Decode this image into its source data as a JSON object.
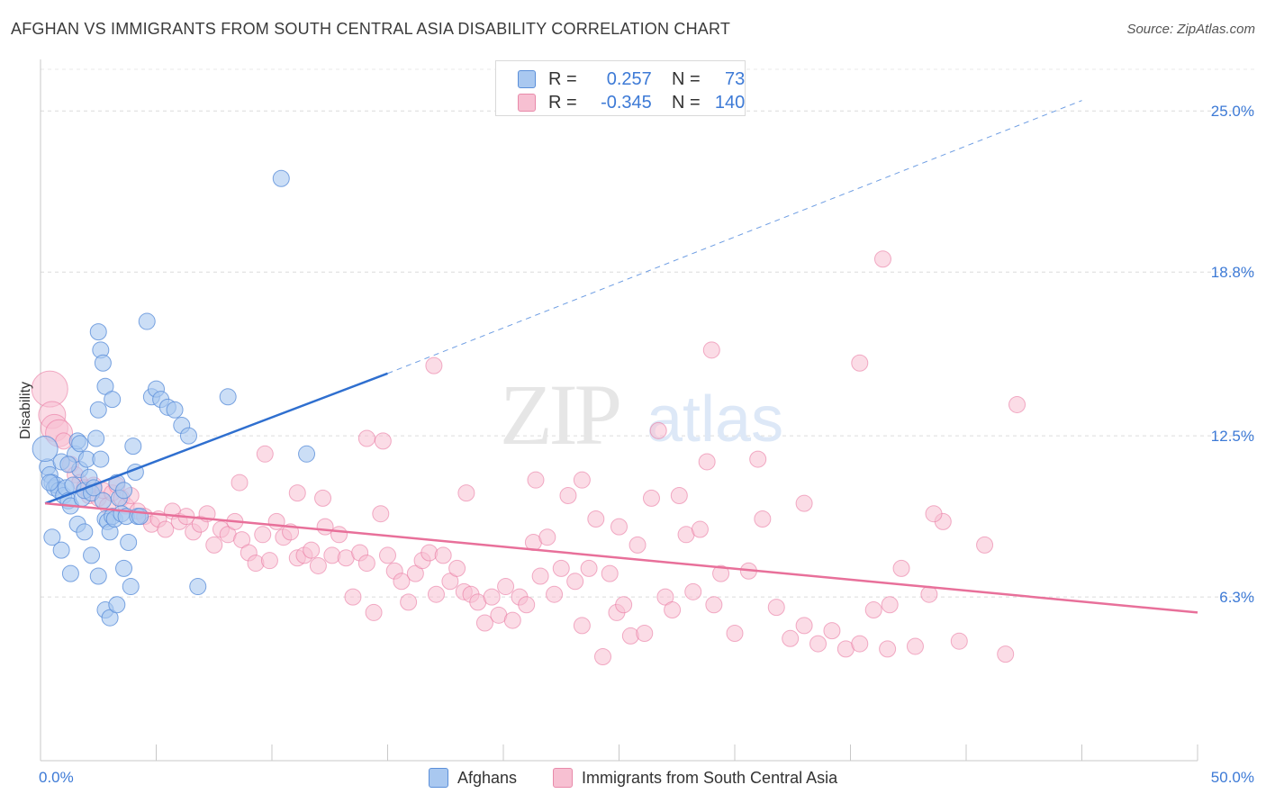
{
  "title": "AFGHAN VS IMMIGRANTS FROM SOUTH CENTRAL ASIA DISABILITY CORRELATION CHART",
  "source": "Source: ZipAtlas.com",
  "watermark": {
    "zip": "ZIP",
    "atlas": "atlas"
  },
  "legend": {
    "rows": [
      {
        "r_label": "R =",
        "r_value": "0.257",
        "n_label": "N =",
        "n_value": "73",
        "color": "#a9c8f0",
        "border": "#5b8fd9"
      },
      {
        "r_label": "R =",
        "r_value": "-0.345",
        "n_label": "N =",
        "n_value": "140",
        "color": "#f7c0d2",
        "border": "#e88aaa"
      }
    ],
    "bottom": [
      {
        "label": "Afghans",
        "color": "#a9c8f0",
        "border": "#5b8fd9"
      },
      {
        "label": "Immigrants from South Central Asia",
        "color": "#f7c0d2",
        "border": "#e88aaa"
      }
    ]
  },
  "chart_data": {
    "type": "scatter",
    "title": "AFGHAN VS IMMIGRANTS FROM SOUTH CENTRAL ASIA DISABILITY CORRELATION CHART",
    "xlabel": "",
    "ylabel": "Disability",
    "xlim": [
      0,
      50
    ],
    "ylim": [
      0,
      26.6
    ],
    "x_tick_labels": [
      "0.0%",
      "50.0%"
    ],
    "y_ticks": [
      6.3,
      12.5,
      18.8,
      25.0
    ],
    "y_tick_labels": [
      "6.3%",
      "12.5%",
      "18.8%",
      "25.0%"
    ],
    "grid": true,
    "series": [
      {
        "name": "Afghans",
        "color": "#5b8fd9",
        "fill": "#a9c8f0",
        "trend": {
          "x0": 0.2,
          "y0": 9.9,
          "x1": 15.0,
          "y1": 14.9,
          "dash_x1": 45.0,
          "dash_y1": 25.4
        },
        "points": [
          [
            0.3,
            11.3
          ],
          [
            0.4,
            11.0
          ],
          [
            0.5,
            10.7
          ],
          [
            0.6,
            10.5
          ],
          [
            0.7,
            10.6
          ],
          [
            0.8,
            10.4
          ],
          [
            0.9,
            11.5
          ],
          [
            1.0,
            10.2
          ],
          [
            1.1,
            10.5
          ],
          [
            1.2,
            10.0
          ],
          [
            1.3,
            9.8
          ],
          [
            1.4,
            10.6
          ],
          [
            1.5,
            11.8
          ],
          [
            1.6,
            12.3
          ],
          [
            1.7,
            11.2
          ],
          [
            1.8,
            10.1
          ],
          [
            1.9,
            10.4
          ],
          [
            2.0,
            11.6
          ],
          [
            2.1,
            10.9
          ],
          [
            2.2,
            10.3
          ],
          [
            1.7,
            12.2
          ],
          [
            2.4,
            12.4
          ],
          [
            2.5,
            13.5
          ],
          [
            2.6,
            11.6
          ],
          [
            2.7,
            10.0
          ],
          [
            2.8,
            9.3
          ],
          [
            2.9,
            9.2
          ],
          [
            3.0,
            8.8
          ],
          [
            3.1,
            9.4
          ],
          [
            3.2,
            9.3
          ],
          [
            3.3,
            10.7
          ],
          [
            3.4,
            10.1
          ],
          [
            2.5,
            16.5
          ],
          [
            2.6,
            15.8
          ],
          [
            2.7,
            15.3
          ],
          [
            2.8,
            14.4
          ],
          [
            3.1,
            13.9
          ],
          [
            3.5,
            9.5
          ],
          [
            3.7,
            9.4
          ],
          [
            3.8,
            8.4
          ],
          [
            2.2,
            7.9
          ],
          [
            2.5,
            7.1
          ],
          [
            2.8,
            5.8
          ],
          [
            3.0,
            5.5
          ],
          [
            3.3,
            6.0
          ],
          [
            3.6,
            7.4
          ],
          [
            3.9,
            6.7
          ],
          [
            4.2,
            9.4
          ],
          [
            4.0,
            12.1
          ],
          [
            4.1,
            11.1
          ],
          [
            4.3,
            9.4
          ],
          [
            4.6,
            16.9
          ],
          [
            4.8,
            14.0
          ],
          [
            5.0,
            14.3
          ],
          [
            5.2,
            13.9
          ],
          [
            5.5,
            13.6
          ],
          [
            5.8,
            13.5
          ],
          [
            6.1,
            12.9
          ],
          [
            6.4,
            12.5
          ],
          [
            6.8,
            6.7
          ],
          [
            8.1,
            14.0
          ],
          [
            10.4,
            22.4
          ],
          [
            11.5,
            11.8
          ],
          [
            0.5,
            8.6
          ],
          [
            0.9,
            8.1
          ],
          [
            1.3,
            7.2
          ],
          [
            1.6,
            9.1
          ],
          [
            1.9,
            8.8
          ],
          [
            0.2,
            12.0
          ],
          [
            0.4,
            10.7
          ],
          [
            1.2,
            11.4
          ],
          [
            2.3,
            10.5
          ],
          [
            3.6,
            10.4
          ]
        ]
      },
      {
        "name": "Immigrants from South Central Asia",
        "color": "#e8709a",
        "fill": "#f7c0d2",
        "trend": {
          "x0": 0.2,
          "y0": 9.9,
          "x1": 50.0,
          "y1": 5.7
        },
        "points": [
          [
            0.4,
            14.3
          ],
          [
            0.5,
            13.3
          ],
          [
            0.6,
            12.8
          ],
          [
            0.8,
            12.6
          ],
          [
            1.0,
            12.3
          ],
          [
            1.3,
            11.4
          ],
          [
            1.5,
            11.0
          ],
          [
            1.7,
            10.7
          ],
          [
            1.9,
            10.5
          ],
          [
            2.1,
            10.2
          ],
          [
            2.3,
            10.6
          ],
          [
            2.5,
            10.1
          ],
          [
            2.7,
            10.4
          ],
          [
            2.9,
            9.8
          ],
          [
            3.1,
            10.3
          ],
          [
            3.3,
            10.6
          ],
          [
            3.5,
            10.1
          ],
          [
            3.7,
            9.8
          ],
          [
            3.9,
            10.2
          ],
          [
            4.2,
            9.6
          ],
          [
            4.5,
            9.4
          ],
          [
            4.8,
            9.1
          ],
          [
            5.1,
            9.3
          ],
          [
            5.4,
            8.9
          ],
          [
            5.7,
            9.6
          ],
          [
            6.0,
            9.2
          ],
          [
            6.3,
            9.4
          ],
          [
            6.6,
            8.8
          ],
          [
            6.9,
            9.1
          ],
          [
            7.2,
            9.5
          ],
          [
            7.5,
            8.3
          ],
          [
            7.8,
            8.9
          ],
          [
            8.1,
            8.7
          ],
          [
            8.4,
            9.2
          ],
          [
            8.7,
            8.5
          ],
          [
            9.0,
            8.0
          ],
          [
            9.3,
            7.6
          ],
          [
            9.6,
            8.7
          ],
          [
            9.9,
            7.7
          ],
          [
            10.2,
            9.2
          ],
          [
            10.5,
            8.6
          ],
          [
            10.8,
            8.8
          ],
          [
            11.1,
            7.8
          ],
          [
            11.4,
            7.9
          ],
          [
            11.7,
            8.1
          ],
          [
            12.0,
            7.5
          ],
          [
            12.3,
            9.0
          ],
          [
            12.6,
            7.9
          ],
          [
            12.9,
            8.7
          ],
          [
            13.2,
            7.8
          ],
          [
            13.5,
            6.3
          ],
          [
            13.8,
            8.0
          ],
          [
            14.1,
            7.6
          ],
          [
            14.4,
            5.7
          ],
          [
            14.7,
            9.5
          ],
          [
            15.0,
            7.9
          ],
          [
            15.3,
            7.3
          ],
          [
            15.6,
            6.9
          ],
          [
            15.9,
            6.1
          ],
          [
            16.2,
            7.2
          ],
          [
            16.5,
            7.7
          ],
          [
            16.8,
            8.0
          ],
          [
            17.1,
            6.4
          ],
          [
            17.4,
            7.9
          ],
          [
            17.7,
            6.9
          ],
          [
            18.0,
            7.4
          ],
          [
            18.3,
            6.5
          ],
          [
            18.6,
            6.4
          ],
          [
            18.9,
            6.1
          ],
          [
            19.2,
            5.3
          ],
          [
            19.5,
            6.3
          ],
          [
            19.8,
            5.6
          ],
          [
            20.1,
            6.7
          ],
          [
            20.4,
            5.4
          ],
          [
            20.7,
            6.3
          ],
          [
            21.0,
            6.0
          ],
          [
            21.3,
            8.4
          ],
          [
            21.6,
            7.1
          ],
          [
            21.9,
            8.6
          ],
          [
            22.2,
            6.4
          ],
          [
            22.5,
            7.4
          ],
          [
            22.8,
            10.2
          ],
          [
            23.1,
            6.9
          ],
          [
            23.4,
            5.2
          ],
          [
            23.7,
            7.4
          ],
          [
            24.0,
            9.3
          ],
          [
            24.3,
            4.0
          ],
          [
            24.6,
            7.2
          ],
          [
            24.9,
            5.7
          ],
          [
            25.2,
            6.0
          ],
          [
            25.5,
            4.8
          ],
          [
            25.8,
            8.3
          ],
          [
            26.1,
            4.9
          ],
          [
            26.4,
            10.1
          ],
          [
            26.7,
            12.7
          ],
          [
            27.0,
            6.3
          ],
          [
            27.3,
            5.8
          ],
          [
            27.6,
            10.2
          ],
          [
            27.9,
            8.7
          ],
          [
            28.2,
            6.5
          ],
          [
            28.5,
            8.9
          ],
          [
            28.8,
            11.5
          ],
          [
            29.1,
            6.0
          ],
          [
            29.4,
            7.2
          ],
          [
            30.0,
            4.9
          ],
          [
            30.6,
            7.3
          ],
          [
            31.2,
            9.3
          ],
          [
            31.8,
            5.9
          ],
          [
            32.4,
            4.7
          ],
          [
            33.0,
            5.2
          ],
          [
            33.6,
            4.5
          ],
          [
            34.2,
            5.0
          ],
          [
            34.8,
            4.3
          ],
          [
            35.4,
            4.5
          ],
          [
            36.0,
            5.8
          ],
          [
            36.6,
            4.3
          ],
          [
            37.2,
            7.4
          ],
          [
            37.8,
            4.4
          ],
          [
            38.4,
            6.4
          ],
          [
            39.0,
            9.2
          ],
          [
            17.0,
            15.2
          ],
          [
            29.0,
            15.8
          ],
          [
            35.4,
            15.3
          ],
          [
            36.4,
            19.3
          ],
          [
            42.2,
            13.7
          ],
          [
            40.8,
            8.3
          ],
          [
            38.6,
            9.5
          ],
          [
            14.8,
            12.3
          ],
          [
            14.1,
            12.4
          ],
          [
            9.7,
            11.8
          ],
          [
            8.6,
            10.7
          ],
          [
            11.1,
            10.3
          ],
          [
            12.2,
            10.1
          ],
          [
            18.4,
            10.3
          ],
          [
            21.4,
            10.8
          ],
          [
            23.4,
            10.8
          ],
          [
            25.0,
            9.0
          ],
          [
            31.0,
            11.6
          ],
          [
            33.0,
            9.9
          ],
          [
            36.7,
            6.0
          ],
          [
            39.7,
            4.6
          ],
          [
            41.7,
            4.1
          ]
        ]
      }
    ]
  }
}
